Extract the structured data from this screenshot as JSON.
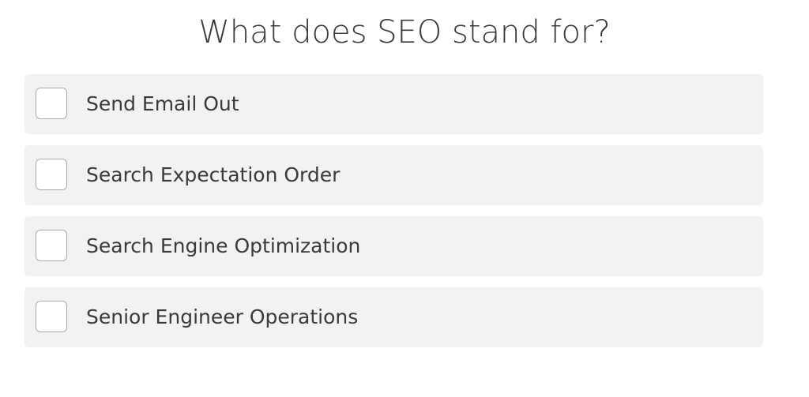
{
  "question": {
    "title": "What does SEO stand for?",
    "options": [
      "Send Email Out",
      "Search Expectation Order",
      "Search Engine Optimization",
      "Senior Engineer Operations"
    ]
  }
}
